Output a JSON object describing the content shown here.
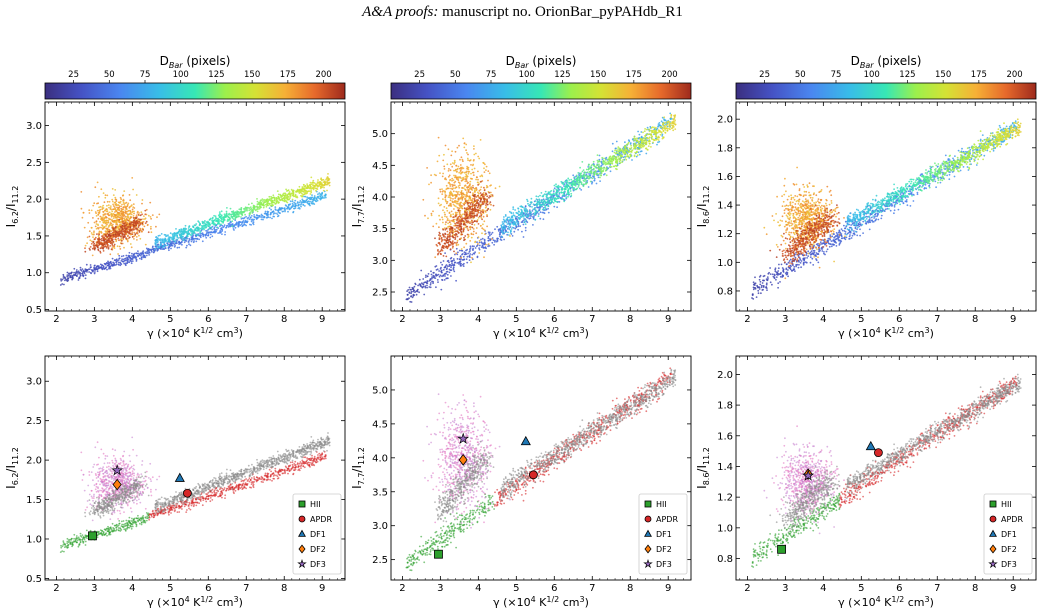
{
  "header": {
    "journal": "A&A proofs:",
    "manuscript": "manuscript no. OrionBar_pyPAHdb_R1"
  },
  "colorbar": {
    "label_main": "D",
    "label_sub": "Bar",
    "label_unit": " (pixels)",
    "range": [
      5,
      215
    ],
    "ticks": [
      25,
      50,
      75,
      100,
      125,
      150,
      175,
      200
    ],
    "tick_labels": [
      "25",
      "50",
      "75",
      "100",
      "125",
      "150",
      "175",
      "200"
    ]
  },
  "legend": {
    "items": [
      {
        "label": "HII",
        "marker": "square",
        "color": "#2ca02c"
      },
      {
        "label": "APDR",
        "marker": "circle",
        "color": "#d62728"
      },
      {
        "label": "DF1",
        "marker": "triangle",
        "color": "#1f77b4"
      },
      {
        "label": "DF2",
        "marker": "diamond",
        "color": "#ff7f0e"
      },
      {
        "label": "DF3",
        "marker": "star",
        "color": "#9467bd"
      }
    ]
  },
  "chart_data": [
    {
      "type": "scatter",
      "id": "top-6.2",
      "ylabel": {
        "main": "I",
        "sub": "6.2",
        "rest": "/I",
        "sub2": "11.2"
      },
      "xlabel": {
        "pre": "γ (×10",
        "sup": "4",
        "mid": " K",
        "sup2": "1/2",
        "post": " cm",
        "sup3": "3",
        "end": ")"
      },
      "xlim": [
        1.7,
        9.6
      ],
      "ylim": [
        0.48,
        3.32
      ],
      "xticks": [
        "2",
        "3",
        "4",
        "5",
        "6",
        "7",
        "8",
        "9"
      ],
      "xtick_values": [
        2,
        3,
        4,
        5,
        6,
        7,
        8,
        9
      ],
      "yticks": [
        "0.5",
        "1.0",
        "1.5",
        "2.0",
        "2.5",
        "3.0"
      ],
      "ytick_values": [
        0.5,
        1.0,
        1.5,
        2.0,
        2.5,
        3.0
      ]
    },
    {
      "type": "scatter",
      "id": "top-7.7",
      "ylabel": {
        "main": "I",
        "sub": "7.7",
        "rest": "/I",
        "sub2": "11.2"
      },
      "xlabel": {
        "pre": "γ (×10",
        "sup": "4",
        "mid": " K",
        "sup2": "1/2",
        "post": " cm",
        "sup3": "3",
        "end": ")"
      },
      "xlim": [
        1.7,
        9.6
      ],
      "ylim": [
        2.2,
        5.5
      ],
      "xticks": [
        "2",
        "3",
        "4",
        "5",
        "6",
        "7",
        "8",
        "9"
      ],
      "xtick_values": [
        2,
        3,
        4,
        5,
        6,
        7,
        8,
        9
      ],
      "yticks": [
        "2.5",
        "3.0",
        "3.5",
        "4.0",
        "4.5",
        "5.0"
      ],
      "ytick_values": [
        2.5,
        3.0,
        3.5,
        4.0,
        4.5,
        5.0
      ]
    },
    {
      "type": "scatter",
      "id": "top-8.6",
      "ylabel": {
        "main": "I",
        "sub": "8.6",
        "rest": "/I",
        "sub2": "11.2"
      },
      "xlabel": {
        "pre": "γ (×10",
        "sup": "4",
        "mid": " K",
        "sup2": "1/2",
        "post": " cm",
        "sup3": "3",
        "end": ")"
      },
      "xlim": [
        1.7,
        9.6
      ],
      "ylim": [
        0.66,
        2.12
      ],
      "xticks": [
        "2",
        "3",
        "4",
        "5",
        "6",
        "7",
        "8",
        "9"
      ],
      "xtick_values": [
        2,
        3,
        4,
        5,
        6,
        7,
        8,
        9
      ],
      "yticks": [
        "0.8",
        "1.0",
        "1.2",
        "1.4",
        "1.6",
        "1.8",
        "2.0"
      ],
      "ytick_values": [
        0.8,
        1.0,
        1.2,
        1.4,
        1.6,
        1.8,
        2.0
      ]
    },
    {
      "type": "scatter",
      "id": "bottom-6.2",
      "ylabel": {
        "main": "I",
        "sub": "6.2",
        "rest": "/I",
        "sub2": "11.2"
      },
      "xlabel": {
        "pre": "γ (×10",
        "sup": "4",
        "mid": " K",
        "sup2": "1/2",
        "post": " cm",
        "sup3": "3",
        "end": ")"
      },
      "xlim": [
        1.7,
        9.6
      ],
      "ylim": [
        0.48,
        3.32
      ],
      "xticks": [
        "2",
        "3",
        "4",
        "5",
        "6",
        "7",
        "8",
        "9"
      ],
      "xtick_values": [
        2,
        3,
        4,
        5,
        6,
        7,
        8,
        9
      ],
      "yticks": [
        "0.5",
        "1.0",
        "1.5",
        "2.0",
        "2.5",
        "3.0"
      ],
      "ytick_values": [
        0.5,
        1.0,
        1.5,
        2.0,
        2.5,
        3.0
      ],
      "markers": {
        "HII": [
          2.95,
          1.04
        ],
        "APDR": [
          5.45,
          1.58
        ],
        "DF1": [
          5.25,
          1.77
        ],
        "DF2": [
          3.6,
          1.69
        ],
        "DF3": [
          3.6,
          1.87
        ]
      }
    },
    {
      "type": "scatter",
      "id": "bottom-7.7",
      "ylabel": {
        "main": "I",
        "sub": "7.7",
        "rest": "/I",
        "sub2": "11.2"
      },
      "xlabel": {
        "pre": "γ (×10",
        "sup": "4",
        "mid": " K",
        "sup2": "1/2",
        "post": " cm",
        "sup3": "3",
        "end": ")"
      },
      "xlim": [
        1.7,
        9.6
      ],
      "ylim": [
        2.2,
        5.5
      ],
      "xticks": [
        "2",
        "3",
        "4",
        "5",
        "6",
        "7",
        "8",
        "9"
      ],
      "xtick_values": [
        2,
        3,
        4,
        5,
        6,
        7,
        8,
        9
      ],
      "yticks": [
        "2.5",
        "3.0",
        "3.5",
        "4.0",
        "4.5",
        "5.0"
      ],
      "ytick_values": [
        2.5,
        3.0,
        3.5,
        4.0,
        4.5,
        5.0
      ],
      "markers": {
        "HII": [
          2.95,
          2.58
        ],
        "APDR": [
          5.45,
          3.75
        ],
        "DF1": [
          5.25,
          4.24
        ],
        "DF2": [
          3.6,
          3.97
        ],
        "DF3": [
          3.6,
          4.28
        ]
      }
    },
    {
      "type": "scatter",
      "id": "bottom-8.6",
      "ylabel": {
        "main": "I",
        "sub": "8.6",
        "rest": "/I",
        "sub2": "11.2"
      },
      "xlabel": {
        "pre": "γ (×10",
        "sup": "4",
        "mid": " K",
        "sup2": "1/2",
        "post": " cm",
        "sup3": "3",
        "end": ")"
      },
      "xlim": [
        1.7,
        9.6
      ],
      "ylim": [
        0.66,
        2.12
      ],
      "xticks": [
        "2",
        "3",
        "4",
        "5",
        "6",
        "7",
        "8",
        "9"
      ],
      "xtick_values": [
        2,
        3,
        4,
        5,
        6,
        7,
        8,
        9
      ],
      "yticks": [
        "0.8",
        "1.0",
        "1.2",
        "1.4",
        "1.6",
        "1.8",
        "2.0"
      ],
      "ytick_values": [
        0.8,
        1.0,
        1.2,
        1.4,
        1.6,
        1.8,
        2.0
      ],
      "markers": {
        "HII": [
          2.9,
          0.86
        ],
        "APDR": [
          5.45,
          1.49
        ],
        "DF1": [
          5.25,
          1.53
        ],
        "DF2": [
          3.6,
          1.35
        ],
        "DF3": [
          3.6,
          1.34
        ]
      }
    }
  ]
}
